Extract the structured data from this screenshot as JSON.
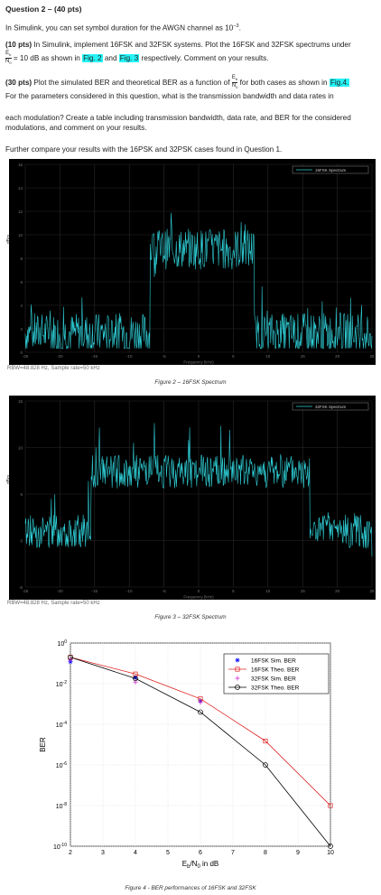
{
  "question": {
    "heading": "Question 2 – (40 pts)",
    "intro_pre": "In Simulink, you can set symbol duration for the AWGN channel as 10",
    "intro_exp": "−3",
    "intro_post": ".",
    "p1_lead": "(10 pts)",
    "p1_text_a": " In Simulink, implement 16FSK and 32FSK systems.  Plot the 16FSK and 32FSK spectrums under",
    "eb": "E",
    "eb_sub": "b",
    "n0": "N",
    "n0_sub": "0",
    "p1_text_b": " = 10 dB as shown in ",
    "fig2_ref": "Fig. 2",
    "and": " and ",
    "fig3_ref": "Fig. 3",
    "p1_text_c": " respectively. Comment on your results.",
    "p2_lead": "(30 pts)",
    "p2_text_a": " Plot the simulated BER and theoretical BER as a function of ",
    "p2_text_b": " for both cases as shown in ",
    "fig4_ref": "Fig.4.",
    "p2_text_c": "For the parameters considered in this question, what is the transmission bandwidth and data rates in",
    "p3": "each modulation? Create a table including transmission bandwidth, data rate, and BER for the considered modulations, and comment on your results.",
    "p4": "Further compare your results with the 16PSK and 32PSK cases found in Question 1."
  },
  "figure2": {
    "caption": "Figure 2 – 16FSK Spectrum",
    "legend": "16FSK Spectrum",
    "ylabel": "dBm",
    "xlabel": "Frequency (kHz)",
    "rbw": "RBW=48.828 Hz, Sample rate=50 kHz",
    "yticks": [
      "16",
      "14",
      "12",
      "10",
      "8",
      "6",
      "4",
      "2",
      "0"
    ],
    "xticks": [
      "-25",
      "-20",
      "-15",
      "-10",
      "-5",
      "0",
      "5",
      "10",
      "15",
      "20",
      "25"
    ]
  },
  "figure3": {
    "caption": "Figure 3 – 32FSK Spectrum",
    "legend": "32FSK Spectrum",
    "ylabel": "dBm",
    "xlabel": "Frequency (kHz)",
    "rbw": "RBW=48.828 Hz, Sample rate=50 kHz",
    "yticks": [
      "15",
      "10",
      "5",
      "0",
      "-5"
    ],
    "xticks": [
      "-25",
      "-20",
      "-15",
      "-10",
      "-5",
      "0",
      "5",
      "10",
      "15",
      "20",
      "25"
    ]
  },
  "figure4": {
    "caption": "Figure 4 - BER performances of 16FSK and 32FSK",
    "ylabel": "BER",
    "xlabel_main": "E",
    "xlabel_sub1": "b",
    "xlabel_mid": "/N",
    "xlabel_sub2": "0",
    "xlabel_end": " in dB",
    "legend": [
      "16FSK Sim. BER",
      "16FSK Theo. BER",
      "32FSK Sim. BER",
      "32FSK Theo. BER"
    ]
  },
  "colors": {
    "trace": "#2fd0d8",
    "highlight": "#25f3f5",
    "sim16": "#0000ff",
    "theo16": "#e02020",
    "sim32": "#d020d0",
    "theo32": "#000000"
  },
  "chart_data": {
    "type": "line",
    "xlabel": "Eb/N0 in dB",
    "ylabel": "BER",
    "xlim": [
      2,
      10
    ],
    "ylim": [
      1e-10,
      1
    ],
    "yscale": "log",
    "x": [
      2,
      4,
      6,
      8,
      10
    ],
    "series": [
      {
        "name": "16FSK Sim. BER",
        "values": [
          0.12,
          0.02,
          0.0014,
          null,
          null
        ]
      },
      {
        "name": "16FSK Theo. BER",
        "values": [
          0.2,
          0.03,
          0.0018,
          1.5e-05,
          1e-08
        ]
      },
      {
        "name": "32FSK Sim. BER",
        "values": [
          0.15,
          0.012,
          0.0012,
          null,
          null
        ]
      },
      {
        "name": "32FSK Theo. BER",
        "values": [
          0.2,
          0.018,
          0.0004,
          1e-06,
          1e-10
        ]
      }
    ],
    "xticks": [
      "2",
      "3",
      "4",
      "5",
      "6",
      "7",
      "8",
      "9",
      "10"
    ],
    "yticks": [
      "10^0",
      "10^-2",
      "10^-4",
      "10^-6",
      "10^-8",
      "10^-10"
    ],
    "grid": true,
    "legend_position": "top-right"
  }
}
